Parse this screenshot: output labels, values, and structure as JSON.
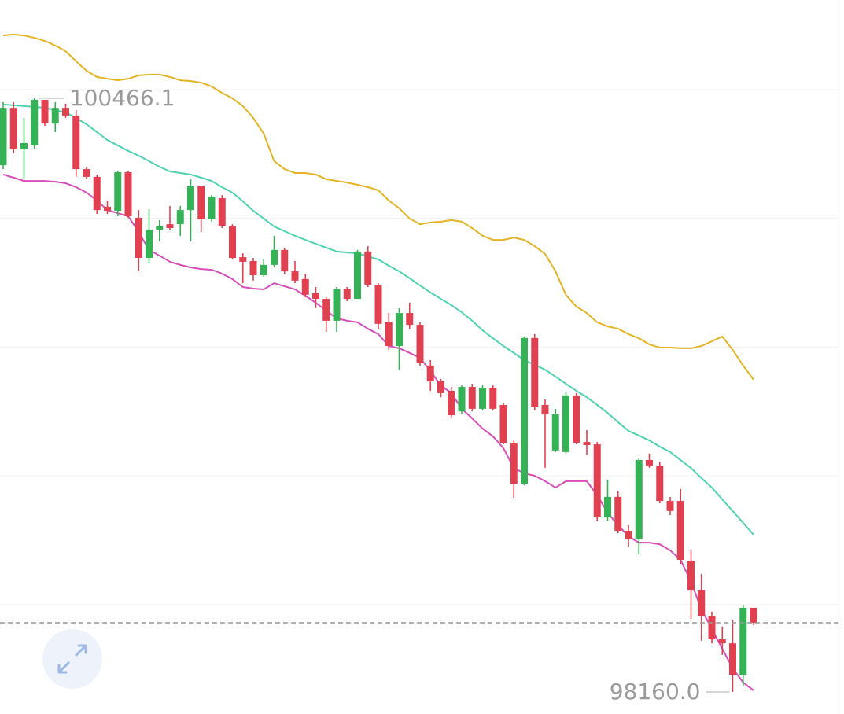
{
  "chart_data": {
    "type": "candlestick",
    "ylim": [
      98074.5,
      100847.9
    ],
    "gridlines": [
      100500,
      100000,
      99500,
      99000,
      98500
    ],
    "up_color": "#35b255",
    "down_color": "#e0404f",
    "max_label": "100466.1",
    "min_label": "98160.0",
    "open": [
      100206,
      100429,
      100268,
      100283,
      100460,
      100368,
      100429,
      100399,
      100191,
      100161,
      100045,
      100029,
      100179,
      100002,
      99846,
      99956,
      99977,
      99977,
      100032,
      100124,
      99996,
      100078,
      99968,
      99849,
      99834,
      99779,
      99819,
      99877,
      99794,
      99764,
      99709,
      99687,
      99602,
      99724,
      99687,
      99871,
      99742,
      99596,
      99504,
      99632,
      99586,
      99428,
      99367,
      99330,
      99250,
      99345,
      99260,
      99342,
      99275,
      99128,
      98969,
      99535,
      99275,
      99098,
      99092,
      99312,
      99131,
      99122,
      98838,
      98918,
      98786,
      98753,
      99061,
      99040,
      98902,
      98902,
      98670,
      98557,
      98456,
      98365,
      98349,
      98227,
      98487
    ],
    "high": [
      100451,
      100451,
      100390,
      100466.1,
      100460,
      100451,
      100445,
      100420,
      100200,
      100170,
      100069,
      100185,
      100185,
      100032,
      100035,
      99993,
      100048,
      100048,
      100152,
      100127,
      100090,
      100090,
      99977,
      99864,
      99846,
      99840,
      99932,
      99886,
      99834,
      99785,
      99733,
      99693,
      99733,
      99733,
      99877,
      99892,
      99748,
      99632,
      99651,
      99672,
      99596,
      99449,
      99376,
      99345,
      99351,
      99357,
      99351,
      99351,
      99284,
      99137,
      99541,
      99550,
      99296,
      99260,
      99327,
      99321,
      99177,
      99131,
      98985,
      98939,
      98808,
      99070,
      99086,
      99052,
      98918,
      98948,
      98710,
      98618,
      98472,
      98414,
      98441,
      98496,
      98487
    ],
    "low": [
      100191,
      100252,
      100152,
      100268,
      100359,
      100335,
      100390,
      100161,
      100152,
      100017,
      100017,
      100008,
      100002,
      99794,
      99825,
      99910,
      99953,
      99932,
      99910,
      99947,
      99987,
      99962,
      99840,
      99748,
      99758,
      99773,
      99809,
      99785,
      99748,
      99693,
      99651,
      99559,
      99559,
      99678,
      99687,
      99733,
      99571,
      99489,
      99412,
      99571,
      99428,
      99330,
      99305,
      99223,
      99241,
      99250,
      99254,
      99254,
      99122,
      98914,
      98963,
      99254,
      99031,
      99092,
      99086,
      99122,
      99082,
      98826,
      98826,
      98777,
      98725,
      98695,
      99031,
      98893,
      98847,
      98658,
      98444,
      98359,
      98349,
      98304,
      98160,
      98181,
      98420
    ],
    "close": [
      100429,
      100268,
      100292,
      100460,
      100368,
      100429,
      100399,
      100191,
      100161,
      100032,
      100029,
      100179,
      100008,
      99846,
      99956,
      99971,
      99962,
      100032,
      100124,
      99996,
      100084,
      99971,
      99846,
      99831,
      99779,
      99819,
      99877,
      99794,
      99758,
      99703,
      99687,
      99602,
      99724,
      99687,
      99871,
      99742,
      99590,
      99504,
      99632,
      99586,
      99437,
      99367,
      99321,
      99235,
      99345,
      99260,
      99342,
      99260,
      99128,
      98969,
      99535,
      99266,
      99238,
      99238,
      99312,
      99128,
      99119,
      98838,
      98918,
      98786,
      98753,
      99061,
      99040,
      98902,
      98863,
      98673,
      98557,
      98456,
      98365,
      98349,
      98227,
      98487,
      98429
    ],
    "lines": [
      {
        "color": "#e3b425",
        "values": [
          100710,
          100714,
          100710,
          100701,
          100689,
          100671,
          100649,
          100610,
          100573,
          100549,
          100542,
          100536,
          100542,
          100555,
          100558,
          100558,
          100549,
          100536,
          100533,
          100527,
          100512,
          100487,
          100466,
          100436,
          100390,
          100329,
          100222,
          100191,
          100176,
          100176,
          100170,
          100152,
          100145,
          100139,
          100130,
          100121,
          100109,
          100069,
          100039,
          99999,
          99977,
          99984,
          99987,
          99993,
          99987,
          99962,
          99932,
          99916,
          99916,
          99925,
          99916,
          99892,
          99861,
          99794,
          99702,
          99657,
          99632,
          99596,
          99580,
          99571,
          99550,
          99534,
          99510,
          99498,
          99498,
          99495,
          99495,
          99504,
          99522,
          99541,
          99489,
          99428,
          99373
        ]
      },
      {
        "color": "#4fd2b2",
        "values": [
          100442,
          100439,
          100436,
          100433,
          100429,
          100420,
          100411,
          100390,
          100365,
          100335,
          100304,
          100283,
          100262,
          100243,
          100222,
          100200,
          100182,
          100176,
          100170,
          100158,
          100145,
          100121,
          100100,
          100066,
          100029,
          99999,
          99968,
          99950,
          99932,
          99916,
          99901,
          99886,
          99871,
          99867,
          99864,
          99852,
          99840,
          99816,
          99794,
          99767,
          99739,
          99712,
          99687,
          99663,
          99635,
          99602,
          99565,
          99534,
          99504,
          99477,
          99449,
          99431,
          99412,
          99385,
          99357,
          99330,
          99305,
          99275,
          99244,
          99208,
          99174,
          99156,
          99137,
          99113,
          99092,
          99061,
          99030,
          98991,
          98954,
          98908,
          98863,
          98817,
          98771
        ]
      },
      {
        "color": "#d64fb9",
        "values": [
          100170,
          100158,
          100145,
          100145,
          100145,
          100142,
          100136,
          100121,
          100100,
          100069,
          100032,
          100020,
          100008,
          99947,
          99877,
          99855,
          99831,
          99819,
          99809,
          99803,
          99800,
          99785,
          99764,
          99733,
          99727,
          99724,
          99748,
          99736,
          99724,
          99699,
          99672,
          99641,
          99611,
          99602,
          99596,
          99571,
          99550,
          99504,
          99495,
          99477,
          99458,
          99406,
          99351,
          99321,
          99260,
          99223,
          99183,
          99153,
          99107,
          99030,
          99009,
          99000,
          98979,
          98954,
          98979,
          98979,
          98979,
          98924,
          98856,
          98808,
          98765,
          98740,
          98740,
          98734,
          98710,
          98673,
          98588,
          98481,
          98404,
          98328,
          98252,
          98197,
          98166
        ]
      }
    ]
  }
}
